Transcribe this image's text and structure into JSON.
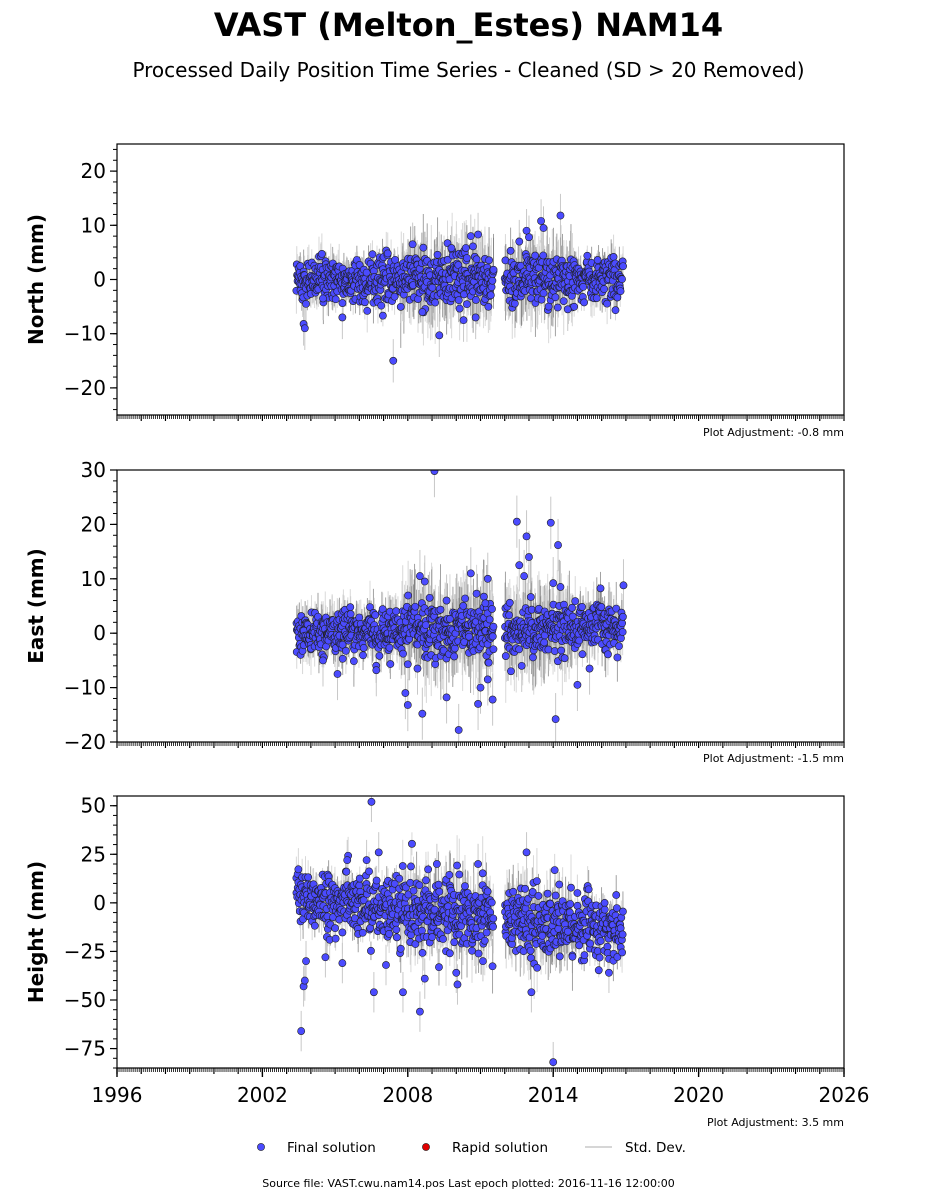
{
  "title": "VAST (Melton_Estes) NAM14",
  "subtitle": "Processed Daily Position Time Series - Cleaned (SD > 20 Removed)",
  "legend": {
    "final": "Final solution",
    "rapid": "Rapid solution",
    "std": "Std. Dev.",
    "placement": "bottom-center"
  },
  "footer": "Source file: VAST.cwu.nam14.pos  Last epoch plotted: 2016-11-16 12:00:00",
  "colors": {
    "final": "#4b4bff",
    "rapid": "#e00000",
    "std": "#c8c8c8",
    "marker_edge": "#202020"
  },
  "chart_data": [
    {
      "type": "scatter",
      "name": "north",
      "ylabel": "North (mm)",
      "ylim": [
        -25,
        25
      ],
      "yticks": [
        -20,
        -10,
        0,
        10,
        20
      ],
      "yminor": 2,
      "xlim": [
        1996,
        2026
      ],
      "adjustment": "Plot Adjustment: -0.8 mm",
      "data_span": [
        2003.4,
        2016.88
      ],
      "gap": [
        2011.55,
        2012.0
      ],
      "scatter_sd": 2.0,
      "trend": [
        0,
        0
      ],
      "err_base": 2.5,
      "outliers": [
        [
          2003.7,
          -8.2
        ],
        [
          2003.75,
          -9.0
        ],
        [
          2003.8,
          -4.5
        ],
        [
          2005.3,
          -7.0
        ],
        [
          2007.4,
          -15.0
        ],
        [
          2009.3,
          -10.3
        ],
        [
          2010.3,
          -7.5
        ],
        [
          2010.6,
          8.0
        ],
        [
          2010.9,
          8.3
        ],
        [
          2012.9,
          9.0
        ],
        [
          2013.0,
          7.8
        ],
        [
          2013.5,
          10.8
        ],
        [
          2013.6,
          9.5
        ],
        [
          2014.3,
          11.8
        ],
        [
          2008.2,
          6.5
        ],
        [
          2009.8,
          5.8
        ],
        [
          2010.8,
          -7.0
        ],
        [
          2012.6,
          7.0
        ],
        [
          2014.6,
          -5.5
        ],
        [
          2004.5,
          -3.5
        ],
        [
          2008.6,
          -6.0
        ]
      ]
    },
    {
      "type": "scatter",
      "name": "east",
      "ylabel": "East (mm)",
      "ylim": [
        -20,
        30
      ],
      "yticks": [
        -20,
        -10,
        0,
        10,
        20,
        30
      ],
      "yminor": 2,
      "xlim": [
        1996,
        2026
      ],
      "adjustment": "Plot Adjustment: -1.5 mm",
      "data_span": [
        2003.4,
        2016.88
      ],
      "gap": [
        2011.55,
        2012.0
      ],
      "scatter_sd": 2.0,
      "trend": [
        0,
        1.2
      ],
      "err_base": 3.0,
      "outliers": [
        [
          2009.1,
          29.8
        ],
        [
          2008.5,
          10.5
        ],
        [
          2008.7,
          9.5
        ],
        [
          2008.9,
          6.5
        ],
        [
          2009.6,
          6.0
        ],
        [
          2010.6,
          11.0
        ],
        [
          2011.3,
          10.0
        ],
        [
          2011.2,
          5.5
        ],
        [
          2007.9,
          -11.0
        ],
        [
          2008.0,
          -13.2
        ],
        [
          2008.6,
          -14.8
        ],
        [
          2009.6,
          -11.8
        ],
        [
          2010.1,
          -17.8
        ],
        [
          2010.9,
          -13.0
        ],
        [
          2011.3,
          -8.5
        ],
        [
          2011.0,
          -10.0
        ],
        [
          2011.5,
          -12.2
        ],
        [
          2012.5,
          20.5
        ],
        [
          2012.9,
          17.8
        ],
        [
          2013.0,
          14.0
        ],
        [
          2012.6,
          12.5
        ],
        [
          2012.8,
          10.5
        ],
        [
          2013.9,
          20.3
        ],
        [
          2014.2,
          16.2
        ],
        [
          2014.3,
          8.5
        ],
        [
          2014.0,
          9.2
        ],
        [
          2014.1,
          -15.8
        ],
        [
          2015.0,
          -9.5
        ],
        [
          2015.5,
          -6.5
        ],
        [
          2006.7,
          -6.8
        ],
        [
          2005.1,
          -7.5
        ],
        [
          2016.9,
          8.8
        ],
        [
          2004.5,
          -5.0
        ],
        [
          2008.4,
          -6.5
        ],
        [
          2012.7,
          -6.0
        ]
      ]
    },
    {
      "type": "scatter",
      "name": "height",
      "ylabel": "Height (mm)",
      "ylim": [
        -85,
        55
      ],
      "yticks": [
        -75,
        -50,
        -25,
        0,
        25,
        50
      ],
      "yminor": 5,
      "xlim": [
        1996,
        2026
      ],
      "xticks": [
        1996,
        2002,
        2008,
        2014,
        2020,
        2026
      ],
      "adjustment": "Plot Adjustment: 3.5 mm",
      "data_span": [
        2003.4,
        2016.88
      ],
      "gap": [
        2011.55,
        2012.0
      ],
      "scatter_sd": 7.5,
      "trend": [
        2,
        -14
      ],
      "err_base": 6.5,
      "outliers": [
        [
          2003.6,
          -66
        ],
        [
          2003.7,
          -43
        ],
        [
          2003.75,
          -40
        ],
        [
          2006.5,
          52
        ],
        [
          2006.6,
          -46
        ],
        [
          2008.5,
          -56
        ],
        [
          2008.7,
          -39
        ],
        [
          2010.0,
          -36
        ],
        [
          2010.05,
          -42
        ],
        [
          2007.8,
          -46
        ],
        [
          2013.1,
          -46
        ],
        [
          2014.0,
          -82
        ],
        [
          2012.9,
          26
        ],
        [
          2006.8,
          26
        ],
        [
          2006.3,
          22
        ],
        [
          2005.5,
          22
        ],
        [
          2009.2,
          20
        ],
        [
          2010.9,
          20
        ],
        [
          2003.8,
          -30
        ],
        [
          2004.6,
          -28
        ],
        [
          2005.3,
          -31
        ],
        [
          2007.1,
          -32
        ],
        [
          2016.3,
          -36
        ],
        [
          2011.1,
          -30
        ]
      ]
    }
  ]
}
